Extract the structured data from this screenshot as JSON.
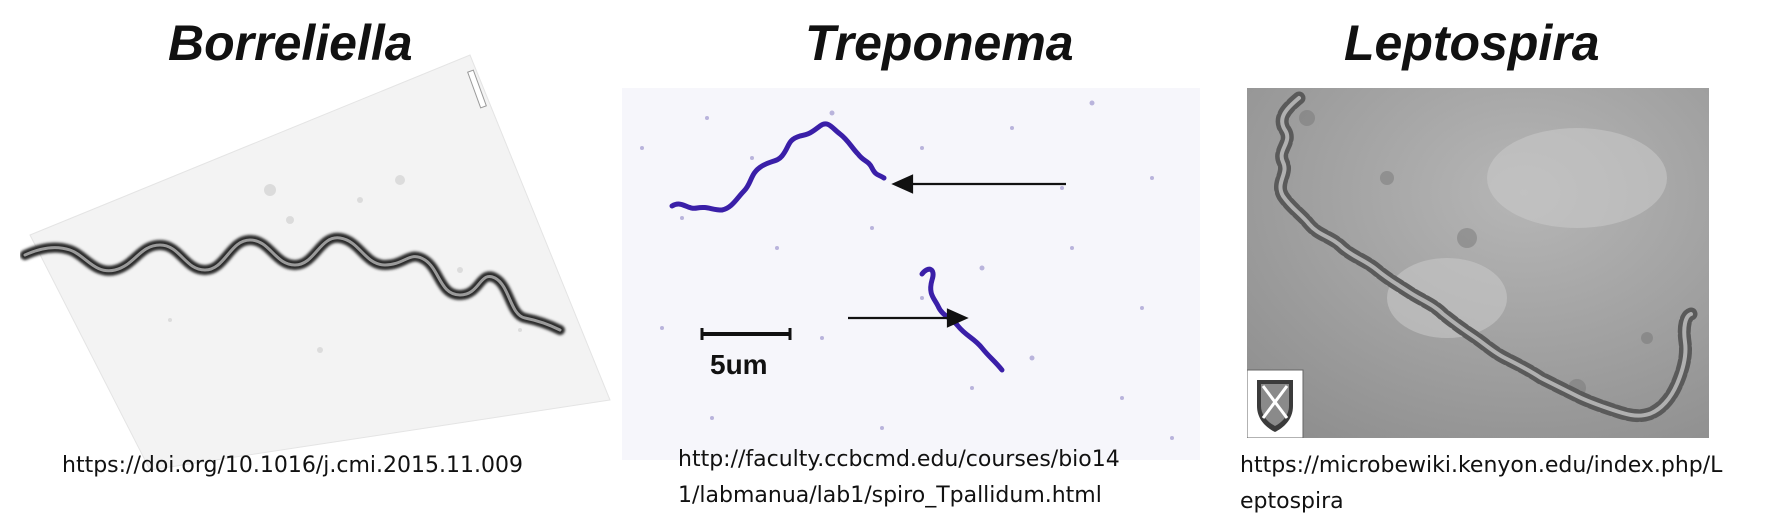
{
  "panels": [
    {
      "title": "Borreliella",
      "caption": "https://doi.org/10.1016/j.cmi.2015.11.009"
    },
    {
      "title": "Treponema",
      "caption_line1": "http://faculty.ccbcmd.edu/courses/bio14",
      "caption_line2": "1/labmanua/lab1/spiro_Tpallidum.html",
      "scale_bar_label": "5um"
    },
    {
      "title": "Leptospira",
      "caption_line1": "https://microbewiki.kenyon.edu/index.php/L",
      "caption_line2": "eptospira"
    }
  ],
  "colors": {
    "treponema_stain": "#3a1fa8",
    "leptospira_background": "#9a9a9a"
  }
}
